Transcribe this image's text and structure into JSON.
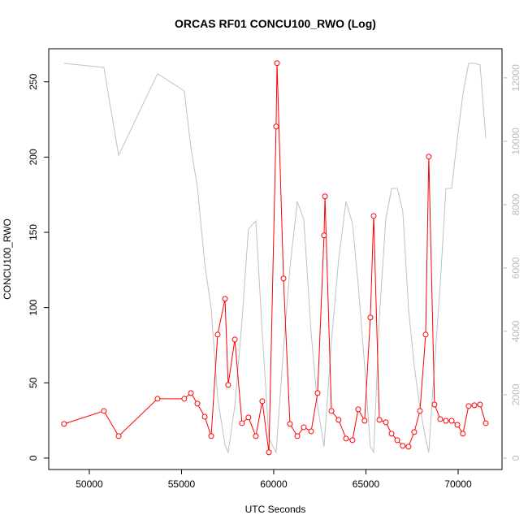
{
  "chart_data": {
    "type": "line",
    "title": "ORCAS RF01 CONCU100_RWO (Log)",
    "x_label": "UTC Seconds",
    "y_label": "CONCU100_RWO",
    "xlim": [
      47800,
      72380
    ],
    "xticks": [
      50000,
      55000,
      60000,
      65000,
      70000
    ],
    "ylim": [
      -7.6,
      272
    ],
    "yticks": [
      0,
      50,
      100,
      150,
      200,
      250
    ],
    "y2lim": [
      -360,
      12920
    ],
    "y2ticks": [
      0,
      2000,
      4000,
      6000,
      8000,
      10000,
      12000
    ],
    "series": [
      {
        "color": "#c0c0c0",
        "axis": "y2",
        "markers": false,
        "x": [
          48630,
          50790,
          51590,
          53700,
          55150,
          55510,
          55860,
          56260,
          56610,
          56960,
          57360,
          57530,
          57890,
          58280,
          58630,
          59030,
          59380,
          59740,
          60130,
          60530,
          60880,
          61280,
          61630,
          62030,
          62380,
          62730,
          63130,
          63520,
          63920,
          64270,
          64580,
          64930,
          65240,
          65420,
          65730,
          66080,
          66390,
          66700,
          67000,
          67310,
          67620,
          67930,
          68240,
          68410,
          68720,
          69030,
          69340,
          69650,
          69960,
          70260,
          70570,
          70880,
          71190,
          71500
        ],
        "values": [
          12460,
          12330,
          9560,
          12130,
          11590,
          9800,
          8560,
          6130,
          4720,
          1900,
          410,
          180,
          1640,
          4330,
          7230,
          7490,
          3950,
          620,
          180,
          3440,
          6000,
          8100,
          7540,
          3950,
          1640,
          360,
          3690,
          6260,
          8100,
          7410,
          5490,
          2920,
          360,
          180,
          4460,
          7540,
          8510,
          8510,
          7800,
          4720,
          2920,
          1590,
          620,
          180,
          2920,
          5490,
          8510,
          8510,
          10100,
          11490,
          12460,
          12460,
          12410,
          10100
        ]
      },
      {
        "color": "#ff0000",
        "axis": "y",
        "markers": true,
        "x": [
          48630,
          50790,
          51590,
          53700,
          55150,
          55510,
          55860,
          56260,
          56610,
          56960,
          57360,
          57530,
          57890,
          58280,
          58630,
          59030,
          59380,
          59740,
          60130,
          60180,
          60530,
          60880,
          61280,
          61630,
          62030,
          62380,
          62730,
          62780,
          63130,
          63520,
          63920,
          64270,
          64580,
          64930,
          65240,
          65420,
          65730,
          66080,
          66390,
          66700,
          67000,
          67310,
          67620,
          67930,
          68240,
          68410,
          68720,
          69030,
          69340,
          69650,
          69960,
          70260,
          70570,
          70880,
          71190,
          71500
        ],
        "values": [
          22.7,
          31.3,
          14.6,
          39.4,
          39.4,
          43.2,
          36.2,
          27.5,
          14.6,
          82.1,
          105.8,
          48.6,
          78.8,
          23.2,
          27.0,
          14.6,
          37.8,
          3.8,
          220.3,
          262.4,
          119.3,
          22.7,
          14.6,
          20.5,
          17.8,
          43.2,
          148,
          173.9,
          31.3,
          25.4,
          13.0,
          11.9,
          32.4,
          24.8,
          93.4,
          160.9,
          25.4,
          23.8,
          16.2,
          11.9,
          8.1,
          7.6,
          17.3,
          31.3,
          82.1,
          200.3,
          35.6,
          25.9,
          24.8,
          24.8,
          22.1,
          16.2,
          34.6,
          35.1,
          35.6,
          23.2
        ]
      }
    ]
  }
}
